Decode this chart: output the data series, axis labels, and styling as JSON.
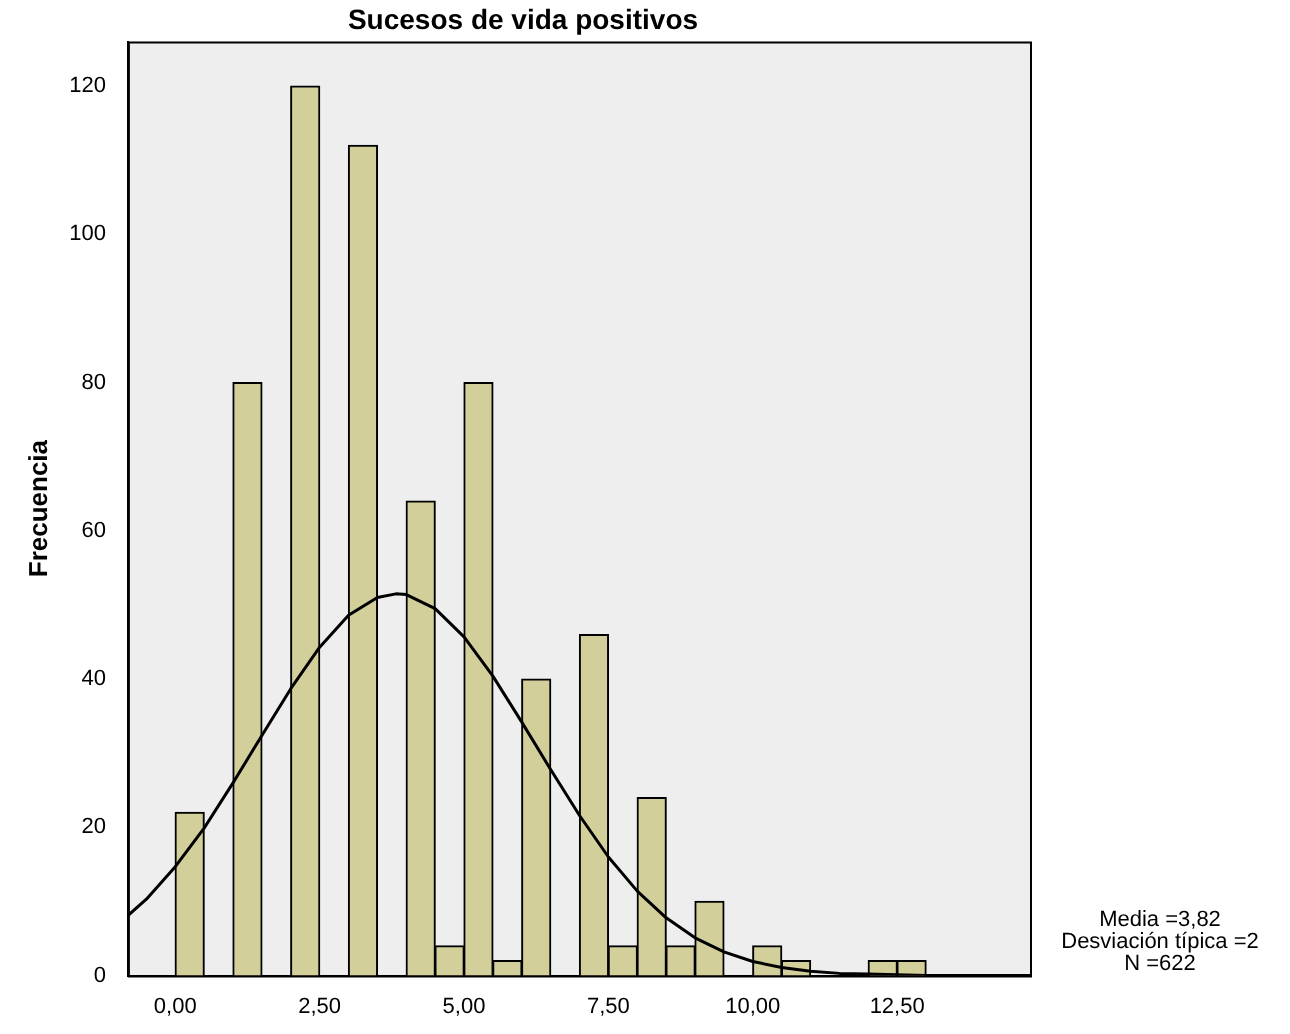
{
  "chart_data": {
    "type": "histogram",
    "title": "Sucesos de vida positivos",
    "ylabel": "Frecuencia",
    "bins": [
      0,
      0.5,
      1,
      1.5,
      2,
      2.5,
      3,
      3.5,
      4,
      4.5,
      5,
      5.5,
      6,
      6.5,
      7,
      7.5,
      8,
      8.5,
      9,
      9.5,
      10,
      10.5,
      11,
      11.5,
      12,
      12.5,
      13
    ],
    "series": [
      {
        "color": "#d3cf9b",
        "values": [
          22,
          0,
          80,
          0,
          120,
          0,
          112,
          0,
          64,
          4,
          80,
          2,
          40,
          0,
          46,
          4,
          24,
          4,
          10,
          0,
          4,
          2,
          0,
          0,
          2,
          2
        ]
      },
      {
        "type": "line",
        "color": "#000000",
        "x": [
          -0.82,
          -0.5,
          0,
          0.5,
          1,
          1.5,
          2,
          2.5,
          3,
          3.5,
          3.82,
          4,
          4.5,
          5,
          5.5,
          6,
          6.5,
          7,
          7.5,
          8,
          8.5,
          9,
          9.5,
          10,
          10.5,
          11,
          11.5,
          12,
          12.5,
          13,
          14.8
        ],
        "values": [
          8.1,
          10.3,
          14.7,
          19.9,
          26.0,
          32.4,
          38.7,
          44.3,
          48.6,
          51.0,
          51.5,
          51.4,
          49.5,
          45.7,
          40.4,
          34.2,
          27.8,
          21.6,
          16.0,
          11.4,
          7.8,
          5.1,
          3.2,
          1.9,
          1.1,
          0.6,
          0.3,
          0.2,
          0.1,
          0,
          0
        ]
      }
    ],
    "xlim": [
      -0.82,
      14.8
    ],
    "ylim": [
      0,
      126
    ],
    "xticks": [
      {
        "value": 0,
        "label": "0,00"
      },
      {
        "value": 2.5,
        "label": "2,50"
      },
      {
        "value": 5,
        "label": "5,00"
      },
      {
        "value": 7.5,
        "label": "7,50"
      },
      {
        "value": 10,
        "label": "10,00"
      },
      {
        "value": 12.5,
        "label": "12,50"
      }
    ],
    "yticks": [
      0,
      20,
      40,
      60,
      80,
      100,
      120
    ],
    "grid": false,
    "legend": false,
    "marker": "none",
    "annotations": [
      "Media =3,82",
      "Desviación típica =2",
      "N =622"
    ]
  }
}
